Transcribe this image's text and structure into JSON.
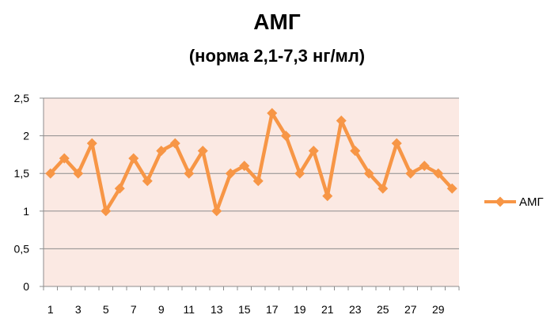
{
  "chart_data": {
    "type": "line",
    "title": "АМГ",
    "subtitle": "(норма 2,1-7,3 нг/мл)",
    "xlabel": "",
    "ylabel": "",
    "x": [
      1,
      2,
      3,
      4,
      5,
      6,
      7,
      8,
      9,
      10,
      11,
      12,
      13,
      14,
      15,
      16,
      17,
      18,
      19,
      20,
      21,
      22,
      23,
      24,
      25,
      26,
      27,
      28,
      29,
      30
    ],
    "x_tick_labels": [
      "1",
      "3",
      "5",
      "7",
      "9",
      "11",
      "13",
      "15",
      "17",
      "19",
      "21",
      "23",
      "25",
      "27",
      "29"
    ],
    "y_tick_labels": [
      "0",
      "0,5",
      "1",
      "1,5",
      "2",
      "2,5"
    ],
    "ylim": [
      0,
      2.5
    ],
    "grid": true,
    "legend_position": "right",
    "series": [
      {
        "name": "АМГ",
        "color": "#F79646",
        "marker": "diamond",
        "values": [
          1.5,
          1.7,
          1.5,
          1.9,
          1.0,
          1.3,
          1.7,
          1.4,
          1.8,
          1.9,
          1.5,
          1.8,
          1.0,
          1.5,
          1.6,
          1.4,
          2.3,
          2.0,
          1.5,
          1.8,
          1.2,
          2.2,
          1.8,
          1.5,
          1.3,
          1.9,
          1.5,
          1.6,
          1.5,
          1.3
        ]
      }
    ],
    "plot_background": "#FBE9E3"
  }
}
